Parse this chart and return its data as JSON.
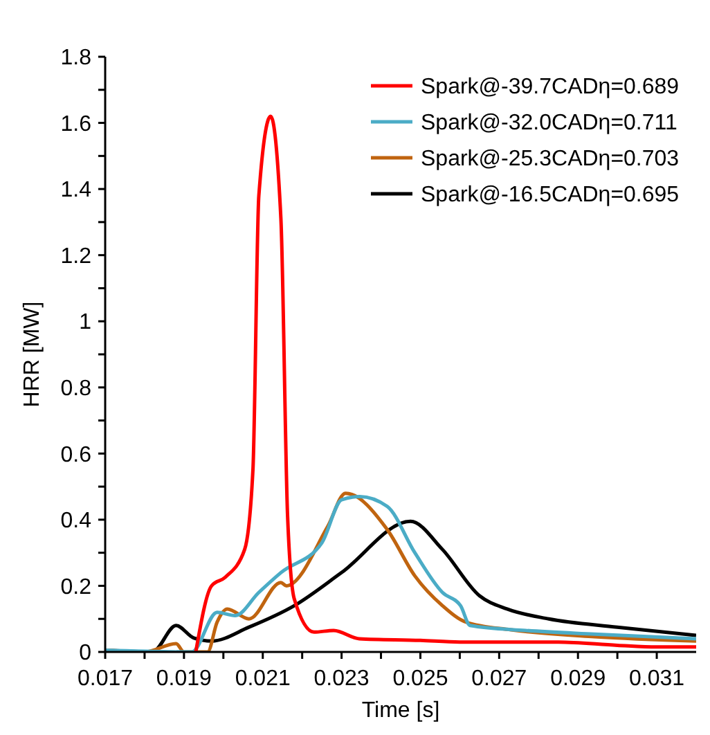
{
  "chart_data": {
    "type": "line",
    "xlabel": "Time [s]",
    "ylabel": "HRR [MW]",
    "xlim": [
      0.017,
      0.032
    ],
    "ylim": [
      0,
      1.8
    ],
    "xticks": [
      0.017,
      {
        "value": 0.018,
        "label": null
      },
      0.019,
      {
        "value": 0.02,
        "label": null
      },
      0.021,
      {
        "value": 0.022,
        "label": null
      },
      0.023,
      {
        "value": 0.024,
        "label": null
      },
      0.025,
      {
        "value": 0.026,
        "label": null
      },
      0.027,
      {
        "value": 0.028,
        "label": null
      },
      0.029,
      {
        "value": 0.03,
        "label": null
      },
      0.031
    ],
    "yticks": [
      0,
      {
        "value": 0.1,
        "label": null
      },
      0.2,
      {
        "value": 0.3,
        "label": null
      },
      0.4,
      {
        "value": 0.5,
        "label": null
      },
      0.6,
      {
        "value": 0.7,
        "label": null
      },
      0.8,
      {
        "value": 0.9,
        "label": null
      },
      {
        "value": 1,
        "label": "1"
      },
      {
        "value": 1.1,
        "label": null
      },
      1.2,
      {
        "value": 1.3,
        "label": null
      },
      1.4,
      {
        "value": 1.5,
        "label": null
      },
      1.6,
      {
        "value": 1.7,
        "label": null
      },
      1.8
    ],
    "grid": false,
    "legend": "top right",
    "marker": "none",
    "line_style": "solid",
    "series": [
      {
        "name": "Spark@-39.7CADη=0.689",
        "color": "#ff0000",
        "x": [
          0.0193,
          0.0197,
          0.02005,
          0.02054,
          0.02075,
          0.0209,
          0.0212,
          0.02146,
          0.02163,
          0.0218,
          0.0223,
          0.0228,
          0.02345,
          0.025,
          0.026,
          0.027,
          0.0285,
          0.03,
          0.031,
          0.032
        ],
        "values": [
          0,
          0.2,
          0.226,
          0.31,
          0.55,
          1.38,
          1.62,
          1.31,
          0.41,
          0.16,
          0.06,
          0.065,
          0.04,
          0.035,
          0.03,
          0.03,
          0.03,
          0.02,
          0.015,
          0.015
        ]
      },
      {
        "name": "Spark@-32.0CADη=0.711",
        "color": "#4bacc6",
        "x": [
          0.017,
          0.0192,
          0.01984,
          0.0203,
          0.0209,
          0.02146,
          0.0225,
          0.023,
          0.02346,
          0.02416,
          0.02486,
          0.02556,
          0.02602,
          0.02626,
          0.02767,
          0.02942,
          0.032
        ],
        "values": [
          0.005,
          0,
          0.12,
          0.11,
          0.18,
          0.24,
          0.33,
          0.46,
          0.47,
          0.44,
          0.3,
          0.18,
          0.14,
          0.08,
          0.065,
          0.054,
          0.04
        ]
      },
      {
        "name": "Spark@-25.3CADη=0.703",
        "color": "#c0640f",
        "x": [
          0.017,
          0.018,
          0.0188,
          0.019,
          0.0196,
          0.01984,
          0.0201,
          0.02065,
          0.02146,
          0.0216,
          0.02265,
          0.0231,
          0.02416,
          0.02486,
          0.02556,
          0.02616,
          0.0273,
          0.02942,
          0.032
        ],
        "values": [
          0.005,
          0,
          0.025,
          0,
          0,
          0.09,
          0.13,
          0.1,
          0.21,
          0.2,
          0.38,
          0.48,
          0.37,
          0.23,
          0.14,
          0.09,
          0.067,
          0.046,
          0.033
        ]
      },
      {
        "name": "Spark@-16.5CADη=0.695",
        "color": "#000000",
        "x": [
          0.017,
          0.0182,
          0.0188,
          0.01925,
          0.0197,
          0.02065,
          0.0218,
          0.023,
          0.02475,
          0.02556,
          0.0265,
          0.0272,
          0.02826,
          0.03,
          0.032
        ],
        "values": [
          0.005,
          0,
          0.08,
          0.042,
          0.033,
          0.075,
          0.14,
          0.24,
          0.395,
          0.31,
          0.17,
          0.13,
          0.1,
          0.075,
          0.05
        ]
      }
    ]
  }
}
